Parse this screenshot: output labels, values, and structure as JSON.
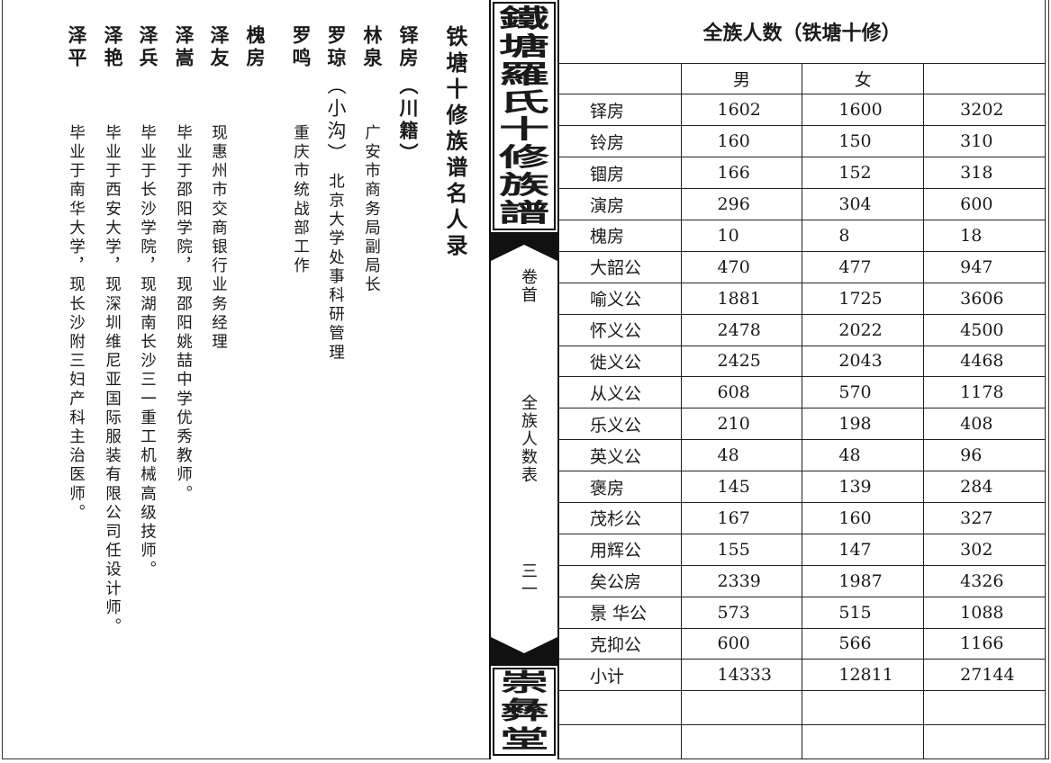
{
  "left_page": {
    "title": "铁塘十修族谱名人录",
    "entries": [
      {
        "name": "铎房",
        "note": "（川籍）",
        "desc": ""
      },
      {
        "name": "林泉",
        "note": "",
        "desc": "广安市商务局副局长"
      },
      {
        "name": "罗琼",
        "note": "（小沟）",
        "desc": "北京大学处事科研管理"
      },
      {
        "name": "罗鸣",
        "note": "",
        "desc": "重庆市统战部工作"
      },
      {
        "name": "槐房",
        "note": "",
        "desc": ""
      },
      {
        "name": "泽友",
        "note": "",
        "desc": "现惠州市交商银行业务经理"
      },
      {
        "name": "泽嵩",
        "note": "",
        "desc": "毕业于邵阳学院，现邵阳姚喆中学优秀教师。"
      },
      {
        "name": "泽兵",
        "note": "",
        "desc": "毕业于长沙学院，现湖南长沙三一重工机械高级技师。"
      },
      {
        "name": "泽艳",
        "note": "",
        "desc": "毕业于西安大学，现深圳维尼亚国际服装有限公司任设计师。"
      },
      {
        "name": "泽平",
        "note": "",
        "desc": "毕业于南华大学，现长沙附三妇产科主治医师。"
      }
    ]
  },
  "spine": {
    "title_chars": [
      "鐵",
      "塘",
      "羅",
      "氏",
      "十",
      "修",
      "族",
      "譜"
    ],
    "volume": "卷首",
    "section": "全族人数表",
    "page": "三一",
    "hall_chars": [
      "崇",
      "彝",
      "堂"
    ]
  },
  "table": {
    "title": "全族人数（铁塘十修）",
    "headers": [
      "",
      "男",
      "女",
      ""
    ],
    "rows": [
      [
        "铎房",
        "1602",
        "1600",
        "3202"
      ],
      [
        "铃房",
        "160",
        "150",
        "310"
      ],
      [
        "锢房",
        "166",
        "152",
        "318"
      ],
      [
        "演房",
        "296",
        "304",
        "600"
      ],
      [
        "槐房",
        "10",
        "8",
        "18"
      ],
      [
        "大韶公",
        "470",
        "477",
        "947"
      ],
      [
        "喻义公",
        "1881",
        "1725",
        "3606"
      ],
      [
        "怀义公",
        "2478",
        "2022",
        "4500"
      ],
      [
        "徙义公",
        "2425",
        "2043",
        "4468"
      ],
      [
        "从义公",
        "608",
        "570",
        "1178"
      ],
      [
        "乐义公",
        "210",
        "198",
        "408"
      ],
      [
        "英义公",
        "48",
        "48",
        "96"
      ],
      [
        "褒房",
        "145",
        "139",
        "284"
      ],
      [
        "茂杉公",
        "167",
        "160",
        "327"
      ],
      [
        "用辉公",
        "155",
        "147",
        "302"
      ],
      [
        "矣公房",
        "2339",
        "1987",
        "4326"
      ],
      [
        "景 华公",
        "573",
        "515",
        "1088"
      ],
      [
        "克抑公",
        "600",
        "566",
        "1166"
      ],
      [
        "小计",
        "14333",
        "12811",
        "27144"
      ]
    ],
    "empty_rows": 2
  }
}
